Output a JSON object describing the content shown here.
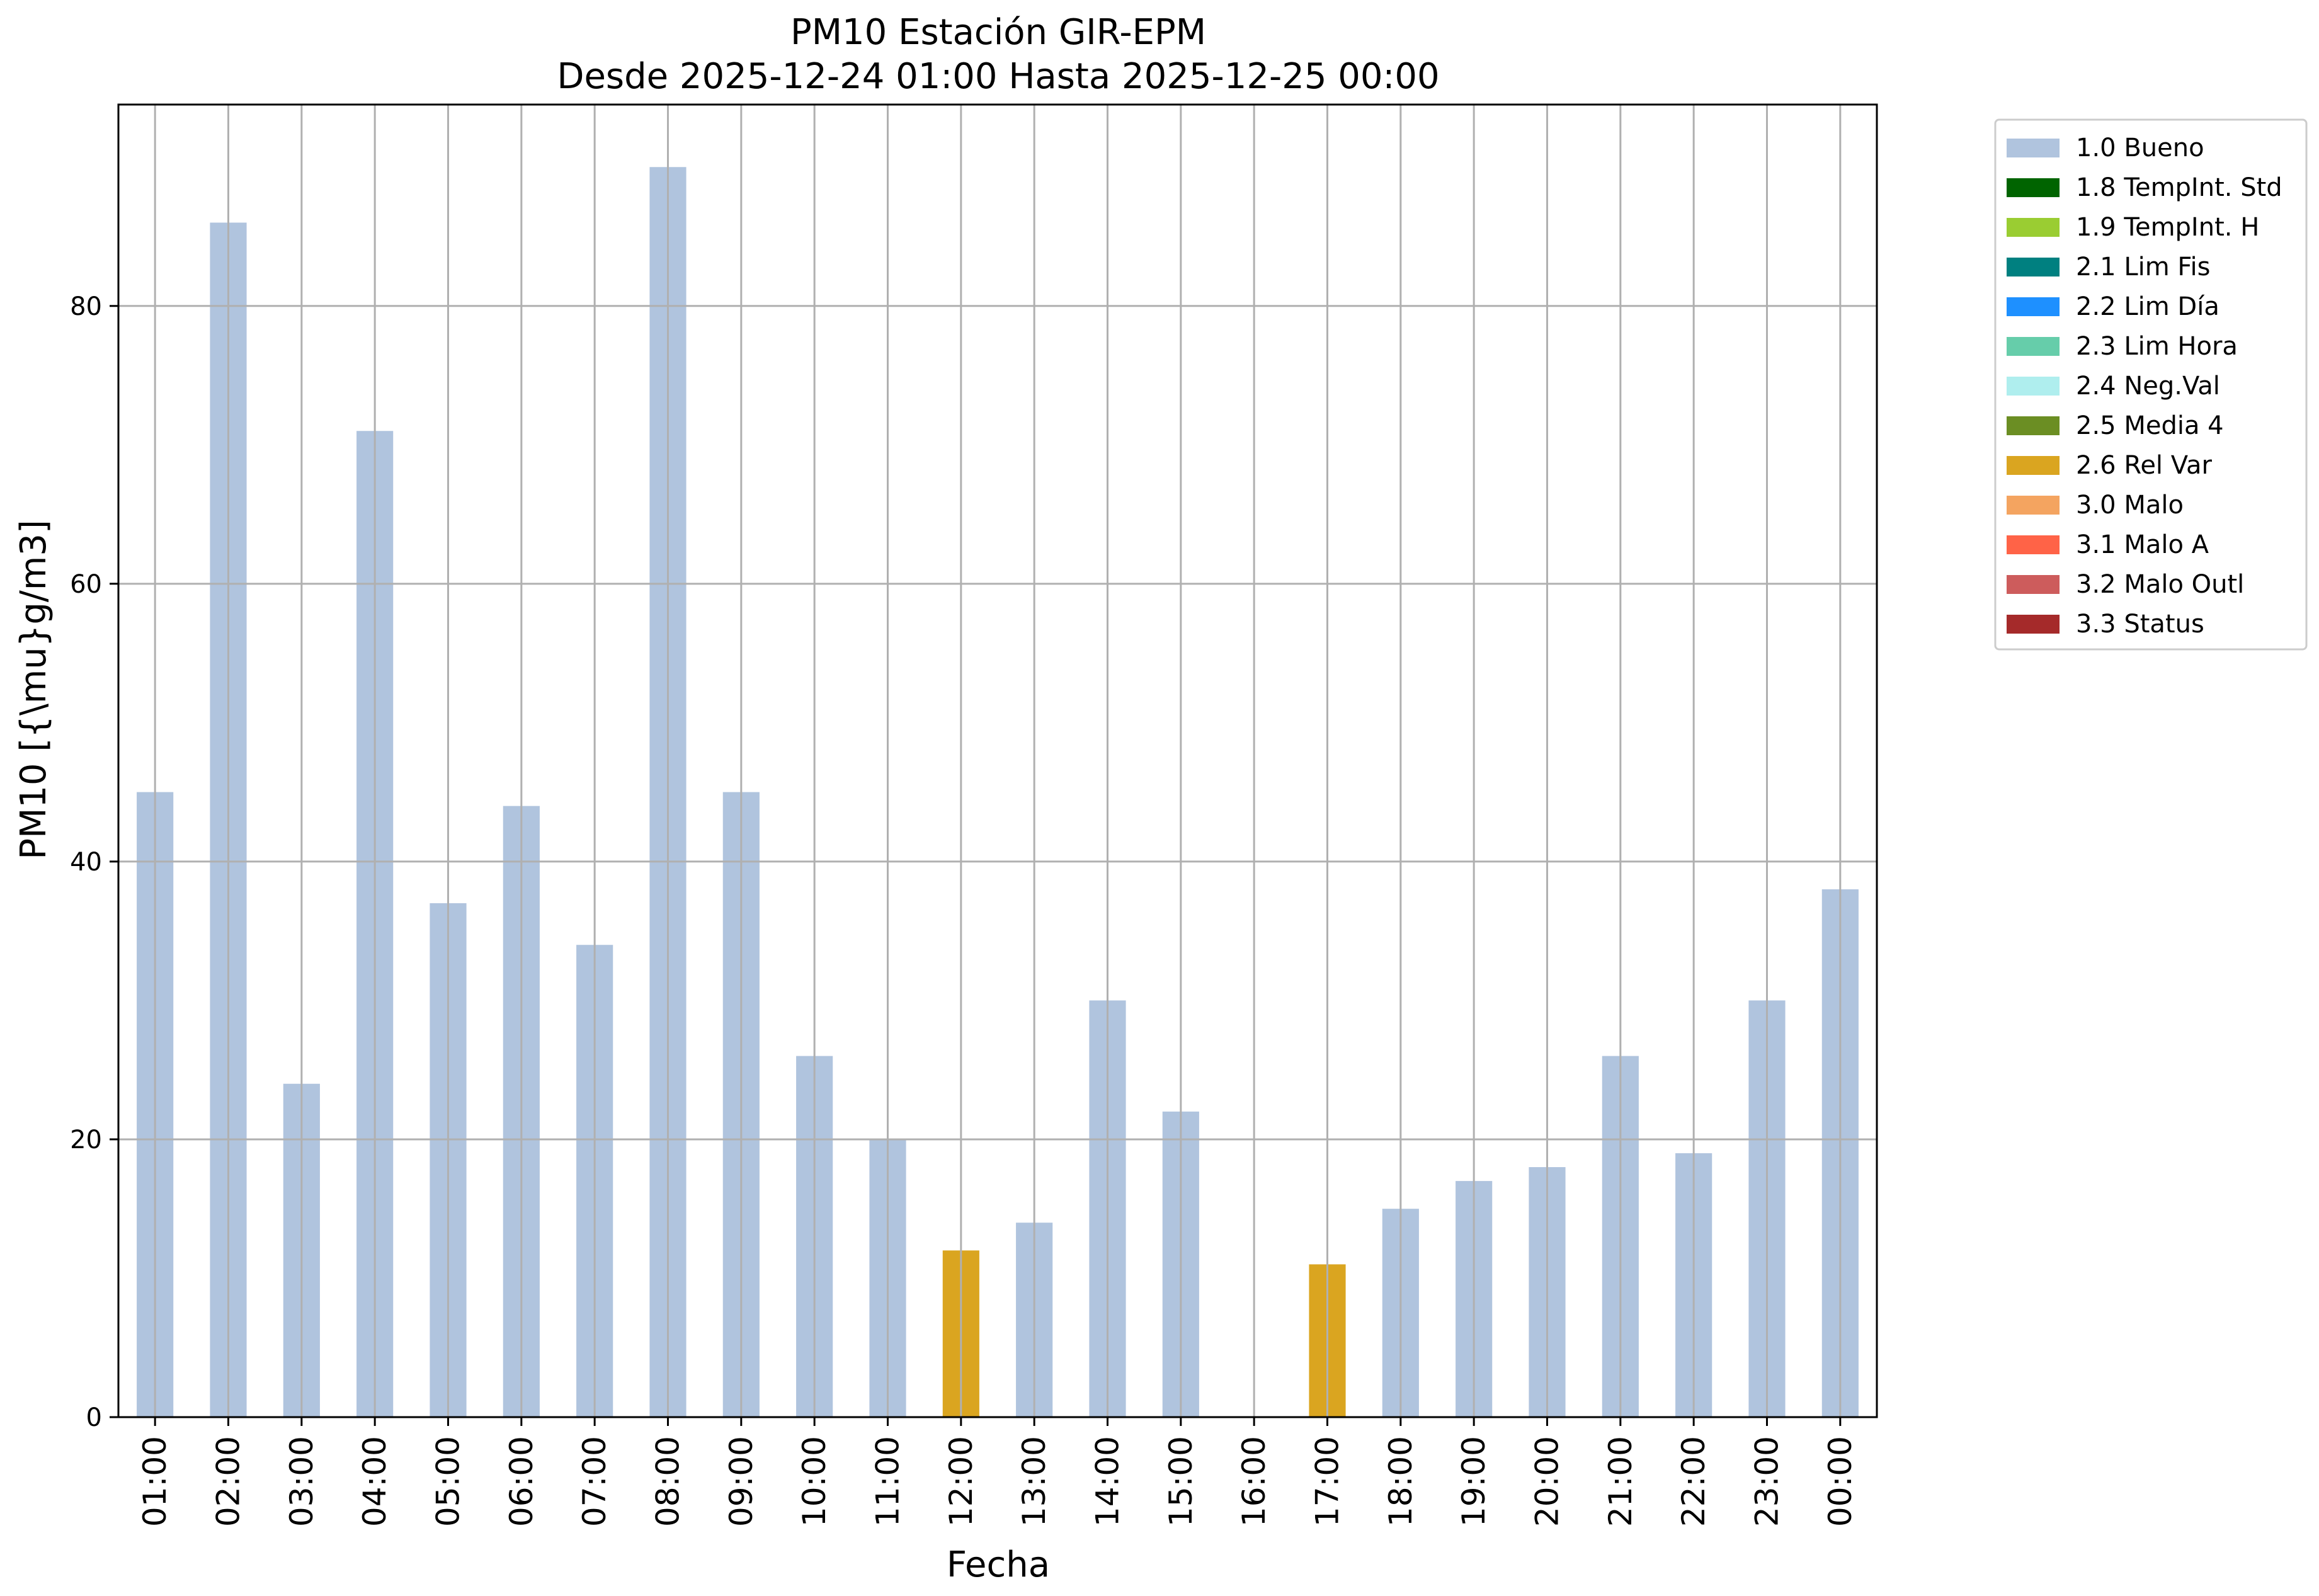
{
  "chart_data": {
    "type": "bar",
    "title": "PM10 Estación GIR-EPM",
    "subtitle": "Desde 2025-12-24 01:00 Hasta 2025-12-25 00:00",
    "xlabel": "Fecha",
    "ylabel": "PM10 [{\\mu}g/m3]",
    "ylim": [
      0,
      94.5
    ],
    "yticks": [
      0,
      20,
      40,
      60,
      80
    ],
    "grid": true,
    "legend_placement": "outside-top-right",
    "categories": [
      "01:00",
      "02:00",
      "03:00",
      "04:00",
      "05:00",
      "06:00",
      "07:00",
      "08:00",
      "09:00",
      "10:00",
      "11:00",
      "12:00",
      "13:00",
      "14:00",
      "15:00",
      "16:00",
      "17:00",
      "18:00",
      "19:00",
      "20:00",
      "21:00",
      "22:00",
      "23:00",
      "00:00"
    ],
    "values": [
      45,
      86,
      24,
      71,
      37,
      44,
      34,
      90,
      45,
      26,
      20,
      12,
      14,
      30,
      22,
      null,
      11,
      15,
      17,
      18,
      26,
      19,
      30,
      38
    ],
    "flags": [
      "1.0 Bueno",
      "1.0 Bueno",
      "1.0 Bueno",
      "1.0 Bueno",
      "1.0 Bueno",
      "1.0 Bueno",
      "1.0 Bueno",
      "1.0 Bueno",
      "1.0 Bueno",
      "1.0 Bueno",
      "1.0 Bueno",
      "2.6 Rel Var",
      "1.0 Bueno",
      "1.0 Bueno",
      "1.0 Bueno",
      null,
      "2.6 Rel Var",
      "1.0 Bueno",
      "1.0 Bueno",
      "1.0 Bueno",
      "1.0 Bueno",
      "1.0 Bueno",
      "1.0 Bueno",
      "1.0 Bueno"
    ],
    "legend": [
      {
        "label": "1.0 Bueno",
        "color": "#b0c4de"
      },
      {
        "label": "1.8 TempInt. Std",
        "color": "#006400"
      },
      {
        "label": "1.9 TempInt. H",
        "color": "#9acd32"
      },
      {
        "label": "2.1 Lim Fis",
        "color": "#008080"
      },
      {
        "label": "2.2 Lim Día",
        "color": "#1e90ff"
      },
      {
        "label": "2.3 Lim Hora",
        "color": "#66cdaa"
      },
      {
        "label": "2.4 Neg.Val",
        "color": "#afeeee"
      },
      {
        "label": "2.5 Media 4",
        "color": "#6b8e23"
      },
      {
        "label": "2.6 Rel Var",
        "color": "#daa520"
      },
      {
        "label": "3.0 Malo",
        "color": "#f4a460"
      },
      {
        "label": "3.1 Malo A",
        "color": "#ff6347"
      },
      {
        "label": "3.2 Malo Outl",
        "color": "#cd5c5c"
      },
      {
        "label": "3.3 Status",
        "color": "#a52a2a"
      }
    ]
  }
}
